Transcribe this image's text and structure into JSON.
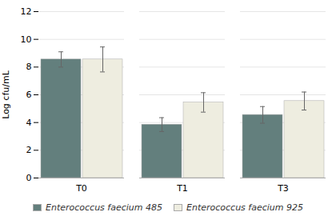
{
  "chart_data": {
    "type": "bar",
    "categories": [
      "T0",
      "T1",
      "T3"
    ],
    "series": [
      {
        "name": "Enterococcus faecium 485",
        "color": "#637f7d",
        "values": [
          8.55,
          3.85,
          4.55
        ],
        "errors": [
          0.55,
          0.5,
          0.6
        ]
      },
      {
        "name": "Enterococcus faecium 925",
        "color": "#eeede0",
        "values": [
          8.55,
          5.45,
          5.55
        ],
        "errors": [
          0.9,
          0.7,
          0.65
        ]
      }
    ],
    "ylabel": "Log cfu/mL",
    "ylim": [
      0,
      12
    ],
    "yticks": [
      0,
      2,
      4,
      6,
      8,
      10,
      12
    ],
    "grid": true,
    "legend": "bottom"
  }
}
